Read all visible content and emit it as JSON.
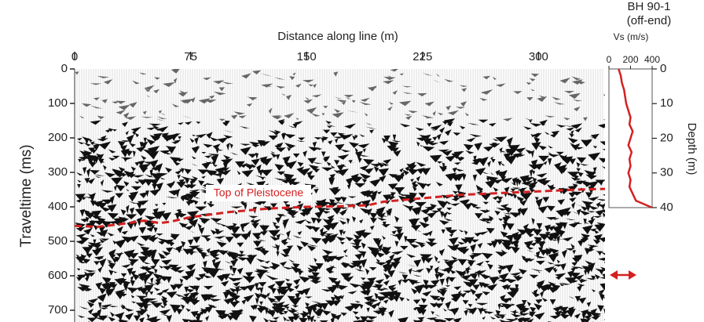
{
  "chart_data": [
    {
      "type": "seismic",
      "x_label": "Distance along line (m)",
      "y_label": "Traveltime (ms)",
      "xlim": [
        0,
        343
      ],
      "xticks": [
        0,
        75,
        150,
        225,
        300
      ],
      "ylim": [
        0,
        734
      ],
      "yticks": [
        0,
        100,
        200,
        300,
        400,
        500,
        600,
        700
      ],
      "horizon": {
        "name": "Top of Pleistocene",
        "color": "#d42020",
        "x": [
          0,
          15,
          30,
          45,
          55,
          62,
          75,
          100,
          125,
          150,
          175,
          190,
          200,
          225,
          250,
          275,
          300,
          325,
          343
        ],
        "values": [
          455,
          458,
          450,
          440,
          447,
          443,
          430,
          415,
          405,
          400,
          398,
          395,
          385,
          375,
          365,
          360,
          355,
          350,
          348
        ]
      }
    },
    {
      "type": "line",
      "title": [
        "BH 90-1",
        "(off-end)"
      ],
      "x_label": "Vs (m/s)",
      "y_label": "Depth (m)",
      "xlim": [
        0,
        400
      ],
      "xticks": [
        0,
        200,
        400
      ],
      "ylim": [
        0,
        40
      ],
      "yticks": [
        0,
        10,
        20,
        30,
        40
      ],
      "series": [
        {
          "color": "#d42020",
          "x": [
            90,
            110,
            120,
            140,
            150,
            160,
            180,
            200,
            190,
            220,
            200,
            180,
            210,
            190,
            200,
            180,
            200,
            190,
            220,
            250,
            400
          ],
          "values": [
            0,
            2,
            4,
            6,
            8,
            10,
            12,
            14,
            16,
            18,
            20,
            22,
            24,
            26,
            28,
            30,
            32,
            34,
            36,
            38,
            40
          ]
        }
      ]
    }
  ]
}
